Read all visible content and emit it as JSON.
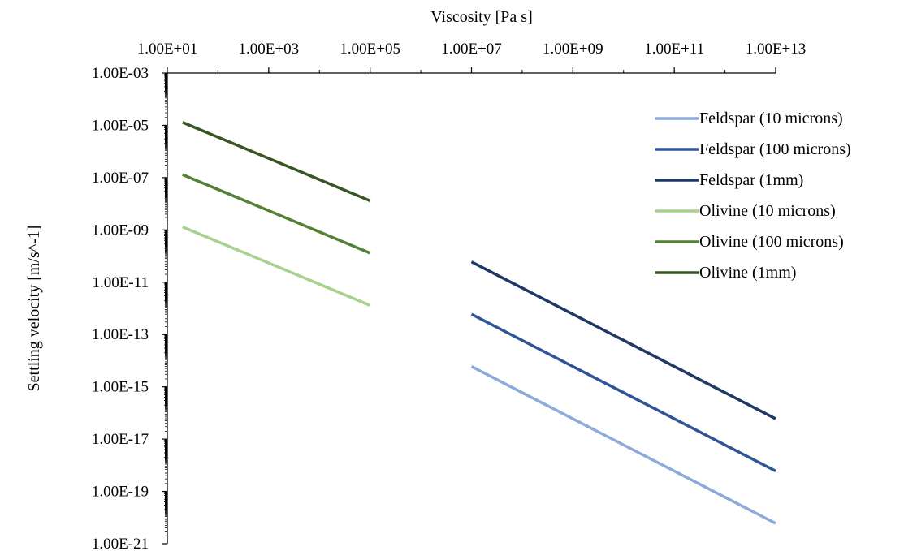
{
  "chart_data": {
    "type": "line",
    "title": "",
    "xlabel": "Viscosity [Pa s]",
    "ylabel": "Settling velocity [m/s^-1]",
    "x_scale": "log",
    "y_scale": "log",
    "x_axis_position": "top",
    "xlim": [
      10,
      10000000000000
    ],
    "ylim": [
      1e-21,
      0.001
    ],
    "x_ticks": [
      10,
      1000,
      100000,
      10000000,
      1000000000,
      100000000000,
      10000000000000
    ],
    "x_tick_labels": [
      "1.00E+01",
      "1.00E+03",
      "1.00E+05",
      "1.00E+07",
      "1.00E+09",
      "1.00E+11",
      "1.00E+13"
    ],
    "y_ticks": [
      0.001,
      1e-05,
      1e-07,
      1e-09,
      1e-11,
      1e-13,
      1e-15,
      1e-17,
      1e-19,
      1e-21
    ],
    "y_tick_labels": [
      "1.00E-03",
      "1.00E-05",
      "1.00E-07",
      "1.00E-09",
      "1.00E-11",
      "1.00E-13",
      "1.00E-15",
      "1.00E-17",
      "1.00E-19",
      "1.00E-21"
    ],
    "grid": false,
    "legend_position": "right",
    "series": [
      {
        "name": "Feldspar (10 microns)",
        "color": "#8eaadb",
        "x": [
          10000000,
          10000000000000
        ],
        "y": [
          6e-15,
          6e-21
        ]
      },
      {
        "name": "Feldspar (100 microns)",
        "color": "#2f5597",
        "x": [
          10000000,
          10000000000000
        ],
        "y": [
          6e-13,
          6e-19
        ]
      },
      {
        "name": "Feldspar (1mm)",
        "color": "#1f3864",
        "x": [
          10000000,
          10000000000000
        ],
        "y": [
          6e-11,
          6e-17
        ]
      },
      {
        "name": "Olivine (10 microns)",
        "color": "#a9d18e",
        "x": [
          20,
          100000
        ],
        "y": [
          1.3e-09,
          1.3e-12
        ]
      },
      {
        "name": "Olivine (100 microns)",
        "color": "#548235",
        "x": [
          20,
          100000
        ],
        "y": [
          1.3e-07,
          1.3e-10
        ]
      },
      {
        "name": "Olivine (1mm)",
        "color": "#375623",
        "x": [
          20,
          100000
        ],
        "y": [
          1.3e-05,
          1.3e-08
        ]
      }
    ]
  }
}
